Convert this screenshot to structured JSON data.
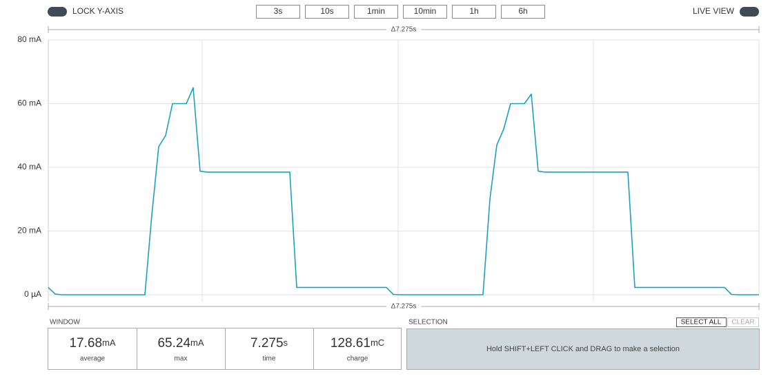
{
  "toolbar": {
    "lock_label": "LOCK Y-AXIS",
    "buttons": [
      "3s",
      "10s",
      "1min",
      "10min",
      "1h",
      "6h"
    ],
    "live_label": "LIVE VIEW"
  },
  "chart_data": {
    "type": "line",
    "delta_top": "Δ7.275s",
    "delta_bottom": "Δ7.275s",
    "color": "#1aa0c2",
    "ylim": [
      0,
      80
    ],
    "yticks": [
      {
        "value": 0,
        "label": "0 µA"
      },
      {
        "value": 20,
        "label": "20 mA"
      },
      {
        "value": 40,
        "label": "40 mA"
      },
      {
        "value": 60,
        "label": "60 mA"
      },
      {
        "value": 80,
        "label": "80 mA"
      }
    ],
    "grid": true,
    "values": [
      2.3,
      0.2,
      0,
      0,
      0,
      0,
      0,
      0,
      0,
      0,
      0,
      0,
      0,
      0,
      0,
      25,
      46.5,
      50,
      60,
      60,
      60,
      65,
      38.8,
      38.5,
      38.5,
      38.5,
      38.5,
      38.5,
      38.5,
      38.5,
      38.5,
      38.5,
      38.5,
      38.5,
      38.5,
      38.5,
      2.3,
      2.3,
      2.3,
      2.3,
      2.3,
      2.3,
      2.3,
      2.3,
      2.3,
      2.3,
      2.3,
      2.3,
      2.3,
      2.3,
      0.1,
      0,
      0,
      0,
      0,
      0,
      0,
      0,
      0,
      0,
      0,
      0,
      0,
      0,
      30,
      47,
      52,
      60,
      60,
      60,
      63,
      38.8,
      38.5,
      38.5,
      38.5,
      38.5,
      38.5,
      38.5,
      38.5,
      38.5,
      38.5,
      38.5,
      38.5,
      38.5,
      38.5,
      2.3,
      2.3,
      2.3,
      2.3,
      2.3,
      2.3,
      2.3,
      2.3,
      2.3,
      2.3,
      2.3,
      2.3,
      2.3,
      2.3,
      0.1,
      0,
      0,
      0,
      0
    ]
  },
  "window": {
    "title": "WINDOW",
    "stats": [
      {
        "value": 17.68,
        "unit": "mA",
        "label": "average"
      },
      {
        "value": 65.24,
        "unit": "mA",
        "label": "max"
      },
      {
        "value": 7.275,
        "unit": "s",
        "label": "time"
      },
      {
        "value": 128.61,
        "unit": "mC",
        "label": "charge"
      }
    ]
  },
  "selection": {
    "title": "SELECTION",
    "select_all": "SELECT ALL",
    "clear": "CLEAR",
    "hint": "Hold SHIFT+LEFT CLICK and DRAG to make a selection"
  }
}
